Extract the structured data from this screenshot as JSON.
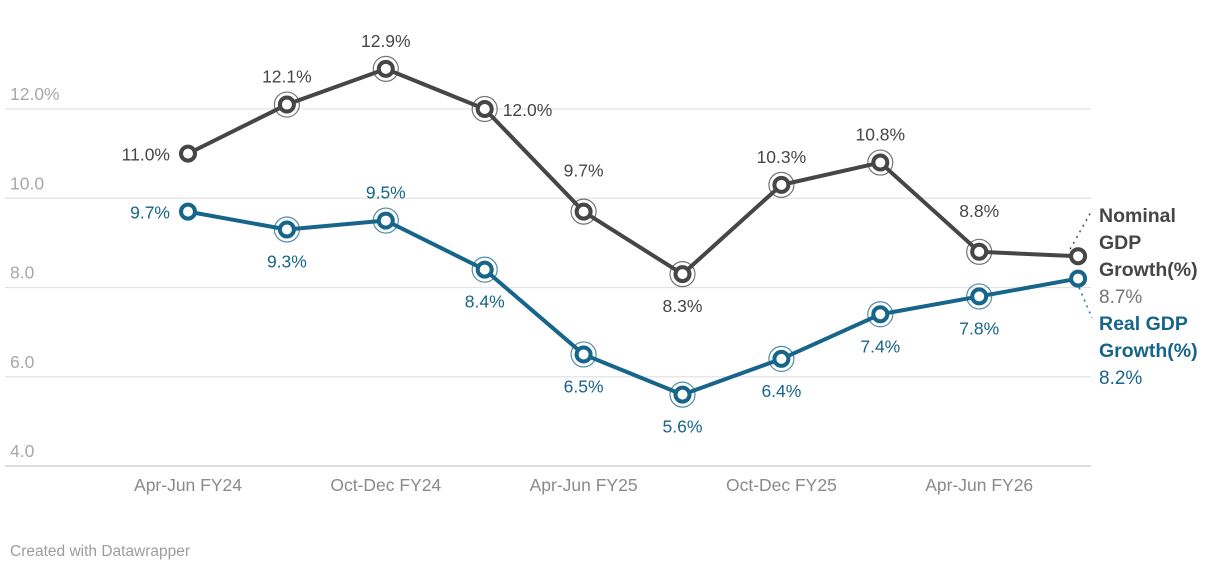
{
  "chart_data": {
    "type": "line",
    "title": "",
    "xlabel": "",
    "ylabel": "",
    "grid": true,
    "legend_position": "right",
    "ylim": [
      4,
      13
    ],
    "x_ticks": [
      {
        "position": 0,
        "label": "Apr-Jun FY24"
      },
      {
        "position": 2,
        "label": "Oct-Dec FY24"
      },
      {
        "position": 4,
        "label": "Apr-Jun FY25"
      },
      {
        "position": 6,
        "label": "Oct-Dec FY25"
      },
      {
        "position": 8,
        "label": "Apr-Jun FY26"
      }
    ],
    "y_ticks": [
      {
        "value": 12,
        "label": "12.0%"
      },
      {
        "value": 10,
        "label": "10.0"
      },
      {
        "value": 8,
        "label": "8.0"
      },
      {
        "value": 6,
        "label": "6.0"
      },
      {
        "value": 4,
        "label": "4.0"
      }
    ],
    "series": [
      {
        "name": "Nominal GDP Growth(%)",
        "color": "#464646",
        "values": [
          11.0,
          12.1,
          12.9,
          12.0,
          9.7,
          8.3,
          10.3,
          10.8,
          8.8,
          8.7
        ],
        "point_labels": [
          "11.0%",
          "12.1%",
          "12.9%",
          "12.0%",
          "9.7%",
          "8.3%",
          "10.3%",
          "10.8%",
          "8.8%",
          ""
        ],
        "label_placement": [
          "left",
          "above",
          "above",
          "right",
          "above-far",
          "below",
          "above",
          "above",
          "above-far",
          "none"
        ],
        "legend_lines": [
          "Nominal",
          "GDP",
          "Growth(%)"
        ],
        "legend_value": "8.7%",
        "legend_value_color": "#757575"
      },
      {
        "name": "Real GDP Growth(%)",
        "color": "#17658a",
        "values": [
          9.7,
          9.3,
          9.5,
          8.4,
          6.5,
          5.6,
          6.4,
          7.4,
          7.8,
          8.2
        ],
        "point_labels": [
          "9.7%",
          "9.3%",
          "9.5%",
          "8.4%",
          "6.5%",
          "5.6%",
          "6.4%",
          "7.4%",
          "7.8%",
          ""
        ],
        "label_placement": [
          "left",
          "below",
          "above",
          "below",
          "below",
          "below",
          "below",
          "below",
          "below",
          "none"
        ],
        "legend_lines": [
          "Real GDP",
          "Growth(%)"
        ],
        "legend_value": "8.2%",
        "legend_value_color": "#17658a"
      }
    ],
    "style": {
      "gridline_color": "#e3e3e3",
      "baseline_color": "#c9c9c9",
      "y_tick_color": "#a8a8a8",
      "x_tick_color": "#8a8a8a"
    }
  },
  "footer": {
    "credit": "Created with Datawrapper"
  }
}
